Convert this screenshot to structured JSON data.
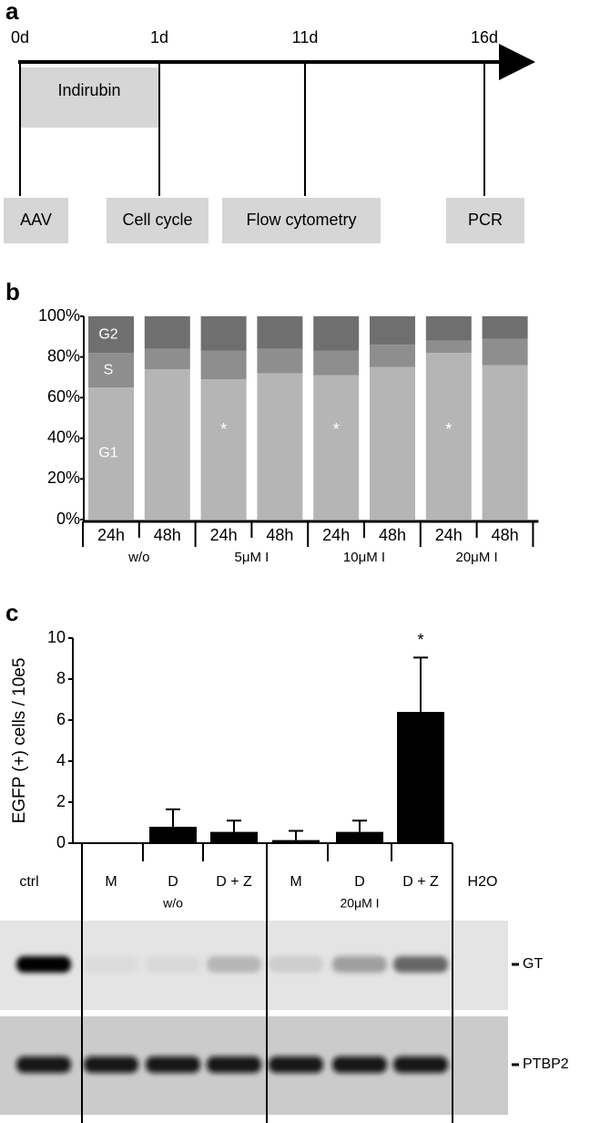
{
  "panel_labels": [
    "a",
    "b",
    "c"
  ],
  "timeline": {
    "days": [
      "0d",
      "1d",
      "11d",
      "16d"
    ],
    "treatment": "Indirubin",
    "assays": [
      "AAV",
      "Cell cycle",
      "Flow cytometry",
      "PCR"
    ]
  },
  "chart_data": [
    {
      "type": "stacked_bar",
      "categories": [
        "24h",
        "48h",
        "24h",
        "48h",
        "24h",
        "48h",
        "24h",
        "48h"
      ],
      "groups": [
        "w/o",
        "5μM I",
        "10μM I",
        "20μM I"
      ],
      "series": [
        {
          "name": "G1",
          "color": "#b5b5b5",
          "values": [
            65,
            74,
            69,
            72,
            71,
            75,
            82,
            76
          ]
        },
        {
          "name": "S",
          "color": "#8e8e8e",
          "values": [
            17,
            10,
            14,
            12,
            12,
            11,
            6,
            13
          ]
        },
        {
          "name": "G2",
          "color": "#6f6f6f",
          "values": [
            18,
            16,
            17,
            16,
            17,
            14,
            12,
            11
          ]
        }
      ],
      "significance": [
        null,
        null,
        "*",
        null,
        "*",
        null,
        "*",
        null
      ],
      "ylim": [
        0,
        100
      ],
      "yticks": [
        {
          "value": 0,
          "label": "0%"
        },
        {
          "value": 20,
          "label": "20%"
        },
        {
          "value": 40,
          "label": "40%"
        },
        {
          "value": 60,
          "label": "60%"
        },
        {
          "value": 80,
          "label": "80%"
        },
        {
          "value": 100,
          "label": "100%"
        }
      ]
    },
    {
      "type": "bar",
      "ylabel": "EGFP (+) cells / 10e5",
      "categories": [
        "M",
        "D",
        "D + Z",
        "M",
        "D",
        "D + Z"
      ],
      "groups": [
        "w/o",
        "20μM I"
      ],
      "values": [
        0,
        0.8,
        0.55,
        0.15,
        0.55,
        6.4
      ],
      "errors": [
        null,
        0.85,
        0.55,
        0.45,
        0.55,
        2.65
      ],
      "significance": [
        null,
        null,
        null,
        null,
        null,
        "*"
      ],
      "color": "#000000",
      "ylim": [
        0,
        10
      ],
      "yticks": [
        0,
        2,
        4,
        6,
        8,
        10
      ]
    }
  ],
  "gel": {
    "control": "ctrl",
    "blank": "H2O",
    "bands": [
      "GT",
      "PTBP2"
    ]
  }
}
